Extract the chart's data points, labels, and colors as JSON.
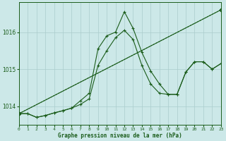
{
  "title": "Graphe pression niveau de la mer (hPa)",
  "bg_color": "#cce8e8",
  "grid_color": "#aacccc",
  "line_color": "#1a5c1a",
  "xlim": [
    0,
    23
  ],
  "ylim": [
    1013.5,
    1016.8
  ],
  "yticks": [
    1014,
    1015,
    1016
  ],
  "xticks": [
    0,
    1,
    2,
    3,
    4,
    5,
    6,
    7,
    8,
    9,
    10,
    11,
    12,
    13,
    14,
    15,
    16,
    17,
    18,
    19,
    20,
    21,
    22,
    23
  ],
  "series": [
    {
      "x": [
        0,
        23
      ],
      "y": [
        1013.8,
        1016.6
      ],
      "style": "dotted",
      "marker": "D",
      "ms": 2.5
    },
    {
      "x": [
        0,
        23
      ],
      "y": [
        1013.8,
        1016.6
      ],
      "style": "solid",
      "marker": "D",
      "ms": 2.5
    },
    {
      "x": [
        0,
        1,
        2,
        3,
        4,
        5,
        6,
        7,
        8,
        9,
        10,
        11,
        12,
        13,
        14,
        15,
        16,
        17,
        18,
        19,
        20,
        21,
        22,
        23
      ],
      "y": [
        1013.8,
        1013.8,
        1013.7,
        1013.75,
        1013.82,
        1013.88,
        1013.95,
        1014.15,
        1014.35,
        1015.55,
        1015.9,
        1016.0,
        1016.55,
        1016.1,
        1015.45,
        1014.95,
        1014.6,
        1014.32,
        1014.32,
        1014.92,
        1015.2,
        1015.2,
        1015.0,
        1015.15
      ],
      "style": "solid",
      "marker": "+",
      "ms": 3.5
    },
    {
      "x": [
        0,
        1,
        2,
        3,
        4,
        5,
        6,
        7,
        8,
        9,
        10,
        11,
        12,
        13,
        14,
        15,
        16,
        17,
        18,
        19,
        20,
        21,
        22,
        23
      ],
      "y": [
        1013.8,
        1013.8,
        1013.7,
        1013.75,
        1013.82,
        1013.88,
        1013.95,
        1014.05,
        1014.2,
        1015.1,
        1015.5,
        1015.85,
        1016.05,
        1015.8,
        1015.1,
        1014.6,
        1014.35,
        1014.32,
        1014.32,
        1014.92,
        1015.2,
        1015.2,
        1015.0,
        1015.15
      ],
      "style": "solid",
      "marker": "+",
      "ms": 3.5
    }
  ]
}
